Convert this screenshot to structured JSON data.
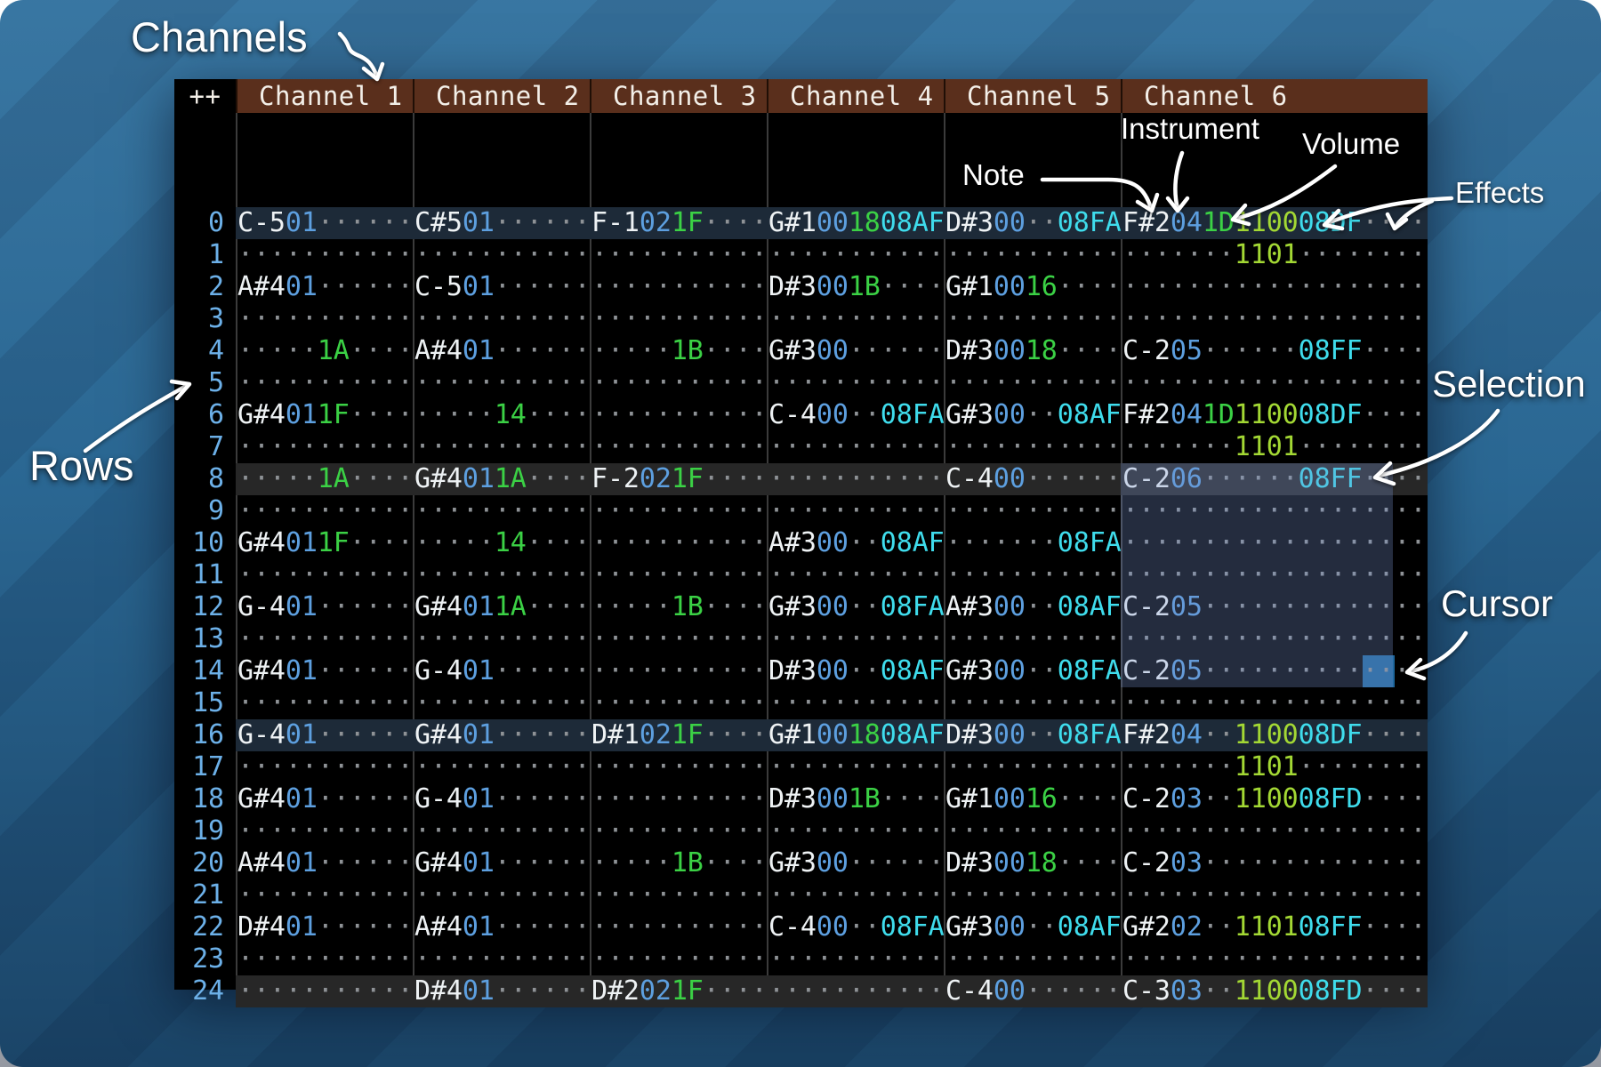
{
  "annotations": {
    "channels": "Channels",
    "rows": "Rows",
    "note": "Note",
    "instrument": "Instrument",
    "volume": "Volume",
    "effects": "Effects",
    "selection": "Selection",
    "cursor": "Cursor"
  },
  "header": {
    "corner": "++",
    "channels": [
      "Channel 1",
      "Channel 2",
      "Channel 3",
      "Channel 4",
      "Channel 5",
      "Channel 6"
    ]
  },
  "pattern": {
    "field_lengths_standard": [
      3,
      2,
      2,
      4
    ],
    "field_lengths_extended": [
      3,
      2,
      2,
      4,
      4,
      4
    ],
    "rows": [
      {
        "n": "0",
        "hl": "measure",
        "cells": [
          [
            "C-5",
            "01",
            "",
            ""
          ],
          [
            "C#5",
            "01",
            "",
            ""
          ],
          [
            "F-1",
            "02",
            "1F",
            ""
          ],
          [
            "G#1",
            "00",
            "18",
            "08AF"
          ],
          [
            "D#3",
            "00",
            "",
            "08FA"
          ],
          [
            "F#2",
            "04",
            "1D",
            "1100",
            "08DF",
            ""
          ]
        ]
      },
      {
        "n": "1",
        "hl": "",
        "cells": [
          [
            "",
            "",
            "",
            ""
          ],
          [
            "",
            "",
            "",
            ""
          ],
          [
            "",
            "",
            "",
            ""
          ],
          [
            "",
            "",
            "",
            ""
          ],
          [
            "",
            "",
            "",
            ""
          ],
          [
            "",
            "",
            "",
            "1101",
            "",
            ""
          ]
        ]
      },
      {
        "n": "2",
        "hl": "",
        "cells": [
          [
            "A#4",
            "01",
            "",
            ""
          ],
          [
            "C-5",
            "01",
            "",
            ""
          ],
          [
            "",
            "",
            "",
            ""
          ],
          [
            "D#3",
            "00",
            "1B",
            ""
          ],
          [
            "G#1",
            "00",
            "16",
            ""
          ],
          [
            "",
            "",
            "",
            "",
            "",
            ""
          ]
        ]
      },
      {
        "n": "3",
        "hl": "",
        "cells": [
          [
            "",
            "",
            "",
            ""
          ],
          [
            "",
            "",
            "",
            ""
          ],
          [
            "",
            "",
            "",
            ""
          ],
          [
            "",
            "",
            "",
            ""
          ],
          [
            "",
            "",
            "",
            ""
          ],
          [
            "",
            "",
            "",
            "",
            "",
            ""
          ]
        ]
      },
      {
        "n": "4",
        "hl": "",
        "cells": [
          [
            "",
            "",
            "1A",
            ""
          ],
          [
            "A#4",
            "01",
            "",
            ""
          ],
          [
            "",
            "",
            "1B",
            ""
          ],
          [
            "G#3",
            "00",
            "",
            ""
          ],
          [
            "D#3",
            "00",
            "18",
            ""
          ],
          [
            "C-2",
            "05",
            "",
            "",
            "08FF",
            ""
          ]
        ]
      },
      {
        "n": "5",
        "hl": "",
        "cells": [
          [
            "",
            "",
            "",
            ""
          ],
          [
            "",
            "",
            "",
            ""
          ],
          [
            "",
            "",
            "",
            ""
          ],
          [
            "",
            "",
            "",
            ""
          ],
          [
            "",
            "",
            "",
            ""
          ],
          [
            "",
            "",
            "",
            "",
            "",
            ""
          ]
        ]
      },
      {
        "n": "6",
        "hl": "",
        "cells": [
          [
            "G#4",
            "01",
            "1F",
            ""
          ],
          [
            "",
            "",
            "14",
            ""
          ],
          [
            "",
            "",
            "",
            ""
          ],
          [
            "C-4",
            "00",
            "",
            "08FA"
          ],
          [
            "G#3",
            "00",
            "",
            "08AF"
          ],
          [
            "F#2",
            "04",
            "1D",
            "1100",
            "08DF",
            ""
          ]
        ]
      },
      {
        "n": "7",
        "hl": "",
        "cells": [
          [
            "",
            "",
            "",
            ""
          ],
          [
            "",
            "",
            "",
            ""
          ],
          [
            "",
            "",
            "",
            ""
          ],
          [
            "",
            "",
            "",
            ""
          ],
          [
            "",
            "",
            "",
            ""
          ],
          [
            "",
            "",
            "",
            "1101",
            "",
            ""
          ]
        ]
      },
      {
        "n": "8",
        "hl": "beat",
        "cells": [
          [
            "",
            "",
            "1A",
            ""
          ],
          [
            "G#4",
            "01",
            "1A",
            ""
          ],
          [
            "F-2",
            "02",
            "1F",
            ""
          ],
          [
            "",
            "",
            "",
            ""
          ],
          [
            "C-4",
            "00",
            "",
            ""
          ],
          [
            "C-2",
            "06",
            "",
            "",
            "08FF",
            ""
          ]
        ]
      },
      {
        "n": "9",
        "hl": "",
        "cells": [
          [
            "",
            "",
            "",
            ""
          ],
          [
            "",
            "",
            "",
            ""
          ],
          [
            "",
            "",
            "",
            ""
          ],
          [
            "",
            "",
            "",
            ""
          ],
          [
            "",
            "",
            "",
            ""
          ],
          [
            "",
            "",
            "",
            "",
            "",
            ""
          ]
        ]
      },
      {
        "n": "10",
        "hl": "",
        "cells": [
          [
            "G#4",
            "01",
            "1F",
            ""
          ],
          [
            "",
            "",
            "14",
            ""
          ],
          [
            "",
            "",
            "",
            ""
          ],
          [
            "A#3",
            "00",
            "",
            "08AF"
          ],
          [
            "",
            "",
            "",
            "08FA"
          ],
          [
            "",
            "",
            "",
            "",
            "",
            ""
          ]
        ]
      },
      {
        "n": "11",
        "hl": "",
        "cells": [
          [
            "",
            "",
            "",
            ""
          ],
          [
            "",
            "",
            "",
            ""
          ],
          [
            "",
            "",
            "",
            ""
          ],
          [
            "",
            "",
            "",
            ""
          ],
          [
            "",
            "",
            "",
            ""
          ],
          [
            "",
            "",
            "",
            "",
            "",
            ""
          ]
        ]
      },
      {
        "n": "12",
        "hl": "",
        "cells": [
          [
            "G-4",
            "01",
            "",
            ""
          ],
          [
            "G#4",
            "01",
            "1A",
            ""
          ],
          [
            "",
            "",
            "1B",
            ""
          ],
          [
            "G#3",
            "00",
            "",
            "08FA"
          ],
          [
            "A#3",
            "00",
            "",
            "08AF"
          ],
          [
            "C-2",
            "05",
            "",
            "",
            "",
            ""
          ]
        ]
      },
      {
        "n": "13",
        "hl": "",
        "cells": [
          [
            "",
            "",
            "",
            ""
          ],
          [
            "",
            "",
            "",
            ""
          ],
          [
            "",
            "",
            "",
            ""
          ],
          [
            "",
            "",
            "",
            ""
          ],
          [
            "",
            "",
            "",
            ""
          ],
          [
            "",
            "",
            "",
            "",
            "",
            ""
          ]
        ]
      },
      {
        "n": "14",
        "hl": "",
        "cells": [
          [
            "G#4",
            "01",
            "",
            ""
          ],
          [
            "G-4",
            "01",
            "",
            ""
          ],
          [
            "",
            "",
            "",
            ""
          ],
          [
            "D#3",
            "00",
            "",
            "08AF"
          ],
          [
            "G#3",
            "00",
            "",
            "08FA"
          ],
          [
            "C-2",
            "05",
            "",
            "",
            "",
            ""
          ]
        ]
      },
      {
        "n": "15",
        "hl": "",
        "cells": [
          [
            "",
            "",
            "",
            ""
          ],
          [
            "",
            "",
            "",
            ""
          ],
          [
            "",
            "",
            "",
            ""
          ],
          [
            "",
            "",
            "",
            ""
          ],
          [
            "",
            "",
            "",
            ""
          ],
          [
            "",
            "",
            "",
            "",
            "",
            ""
          ]
        ]
      },
      {
        "n": "16",
        "hl": "measure",
        "cells": [
          [
            "G-4",
            "01",
            "",
            ""
          ],
          [
            "G#4",
            "01",
            "",
            ""
          ],
          [
            "D#1",
            "02",
            "1F",
            ""
          ],
          [
            "G#1",
            "00",
            "18",
            "08AF"
          ],
          [
            "D#3",
            "00",
            "",
            "08FA"
          ],
          [
            "F#2",
            "04",
            "",
            "1100",
            "08DF",
            ""
          ]
        ]
      },
      {
        "n": "17",
        "hl": "",
        "cells": [
          [
            "",
            "",
            "",
            ""
          ],
          [
            "",
            "",
            "",
            ""
          ],
          [
            "",
            "",
            "",
            ""
          ],
          [
            "",
            "",
            "",
            ""
          ],
          [
            "",
            "",
            "",
            ""
          ],
          [
            "",
            "",
            "",
            "1101",
            "",
            ""
          ]
        ]
      },
      {
        "n": "18",
        "hl": "",
        "cells": [
          [
            "G#4",
            "01",
            "",
            ""
          ],
          [
            "G-4",
            "01",
            "",
            ""
          ],
          [
            "",
            "",
            "",
            ""
          ],
          [
            "D#3",
            "00",
            "1B",
            ""
          ],
          [
            "G#1",
            "00",
            "16",
            ""
          ],
          [
            "C-2",
            "03",
            "",
            "1100",
            "08FD",
            ""
          ]
        ]
      },
      {
        "n": "19",
        "hl": "",
        "cells": [
          [
            "",
            "",
            "",
            ""
          ],
          [
            "",
            "",
            "",
            ""
          ],
          [
            "",
            "",
            "",
            ""
          ],
          [
            "",
            "",
            "",
            ""
          ],
          [
            "",
            "",
            "",
            ""
          ],
          [
            "",
            "",
            "",
            "",
            "",
            ""
          ]
        ]
      },
      {
        "n": "20",
        "hl": "",
        "cells": [
          [
            "A#4",
            "01",
            "",
            ""
          ],
          [
            "G#4",
            "01",
            "",
            ""
          ],
          [
            "",
            "",
            "1B",
            ""
          ],
          [
            "G#3",
            "00",
            "",
            ""
          ],
          [
            "D#3",
            "00",
            "18",
            ""
          ],
          [
            "C-2",
            "03",
            "",
            "",
            "",
            ""
          ]
        ]
      },
      {
        "n": "21",
        "hl": "",
        "cells": [
          [
            "",
            "",
            "",
            ""
          ],
          [
            "",
            "",
            "",
            ""
          ],
          [
            "",
            "",
            "",
            ""
          ],
          [
            "",
            "",
            "",
            ""
          ],
          [
            "",
            "",
            "",
            ""
          ],
          [
            "",
            "",
            "",
            "",
            "",
            ""
          ]
        ]
      },
      {
        "n": "22",
        "hl": "",
        "cells": [
          [
            "D#4",
            "01",
            "",
            ""
          ],
          [
            "A#4",
            "01",
            "",
            ""
          ],
          [
            "",
            "",
            "",
            ""
          ],
          [
            "C-4",
            "00",
            "",
            "08FA"
          ],
          [
            "G#3",
            "00",
            "",
            "08AF"
          ],
          [
            "G#2",
            "02",
            "",
            "1101",
            "08FF",
            ""
          ]
        ]
      },
      {
        "n": "23",
        "hl": "",
        "cells": [
          [
            "",
            "",
            "",
            ""
          ],
          [
            "",
            "",
            "",
            ""
          ],
          [
            "",
            "",
            "",
            ""
          ],
          [
            "",
            "",
            "",
            ""
          ],
          [
            "",
            "",
            "",
            ""
          ],
          [
            "",
            "",
            "",
            "",
            "",
            ""
          ]
        ]
      },
      {
        "n": "24",
        "hl": "beat",
        "cells": [
          [
            "",
            "",
            "",
            ""
          ],
          [
            "D#4",
            "01",
            "",
            ""
          ],
          [
            "D#2",
            "02",
            "1F",
            ""
          ],
          [
            "",
            "",
            "",
            ""
          ],
          [
            "C-4",
            "00",
            "",
            ""
          ],
          [
            "C-3",
            "03",
            "",
            "1100",
            "08FD",
            ""
          ]
        ]
      }
    ]
  },
  "selection_state": {
    "channel": "Channel 6",
    "row_start": 8,
    "row_end": 14
  },
  "cursor_state": {
    "channel": "Channel 6",
    "row": 14
  },
  "colors": {
    "bg-a": "#2e6f9d",
    "bg-b": "#296490",
    "header": "#5a2f1c",
    "note": "#eef2f4",
    "inst": "#5d9fdf",
    "vol": "#3bd145",
    "fx1": "#a3d834",
    "fx2": "#3fdcec",
    "dots": "#8e9296",
    "rownum": "#6cb0e8",
    "hl-measure": "#1d2a38",
    "hl-beat": "#272727",
    "selection": "rgba(120,145,205,0.30)",
    "cursor": "#1d669c"
  }
}
